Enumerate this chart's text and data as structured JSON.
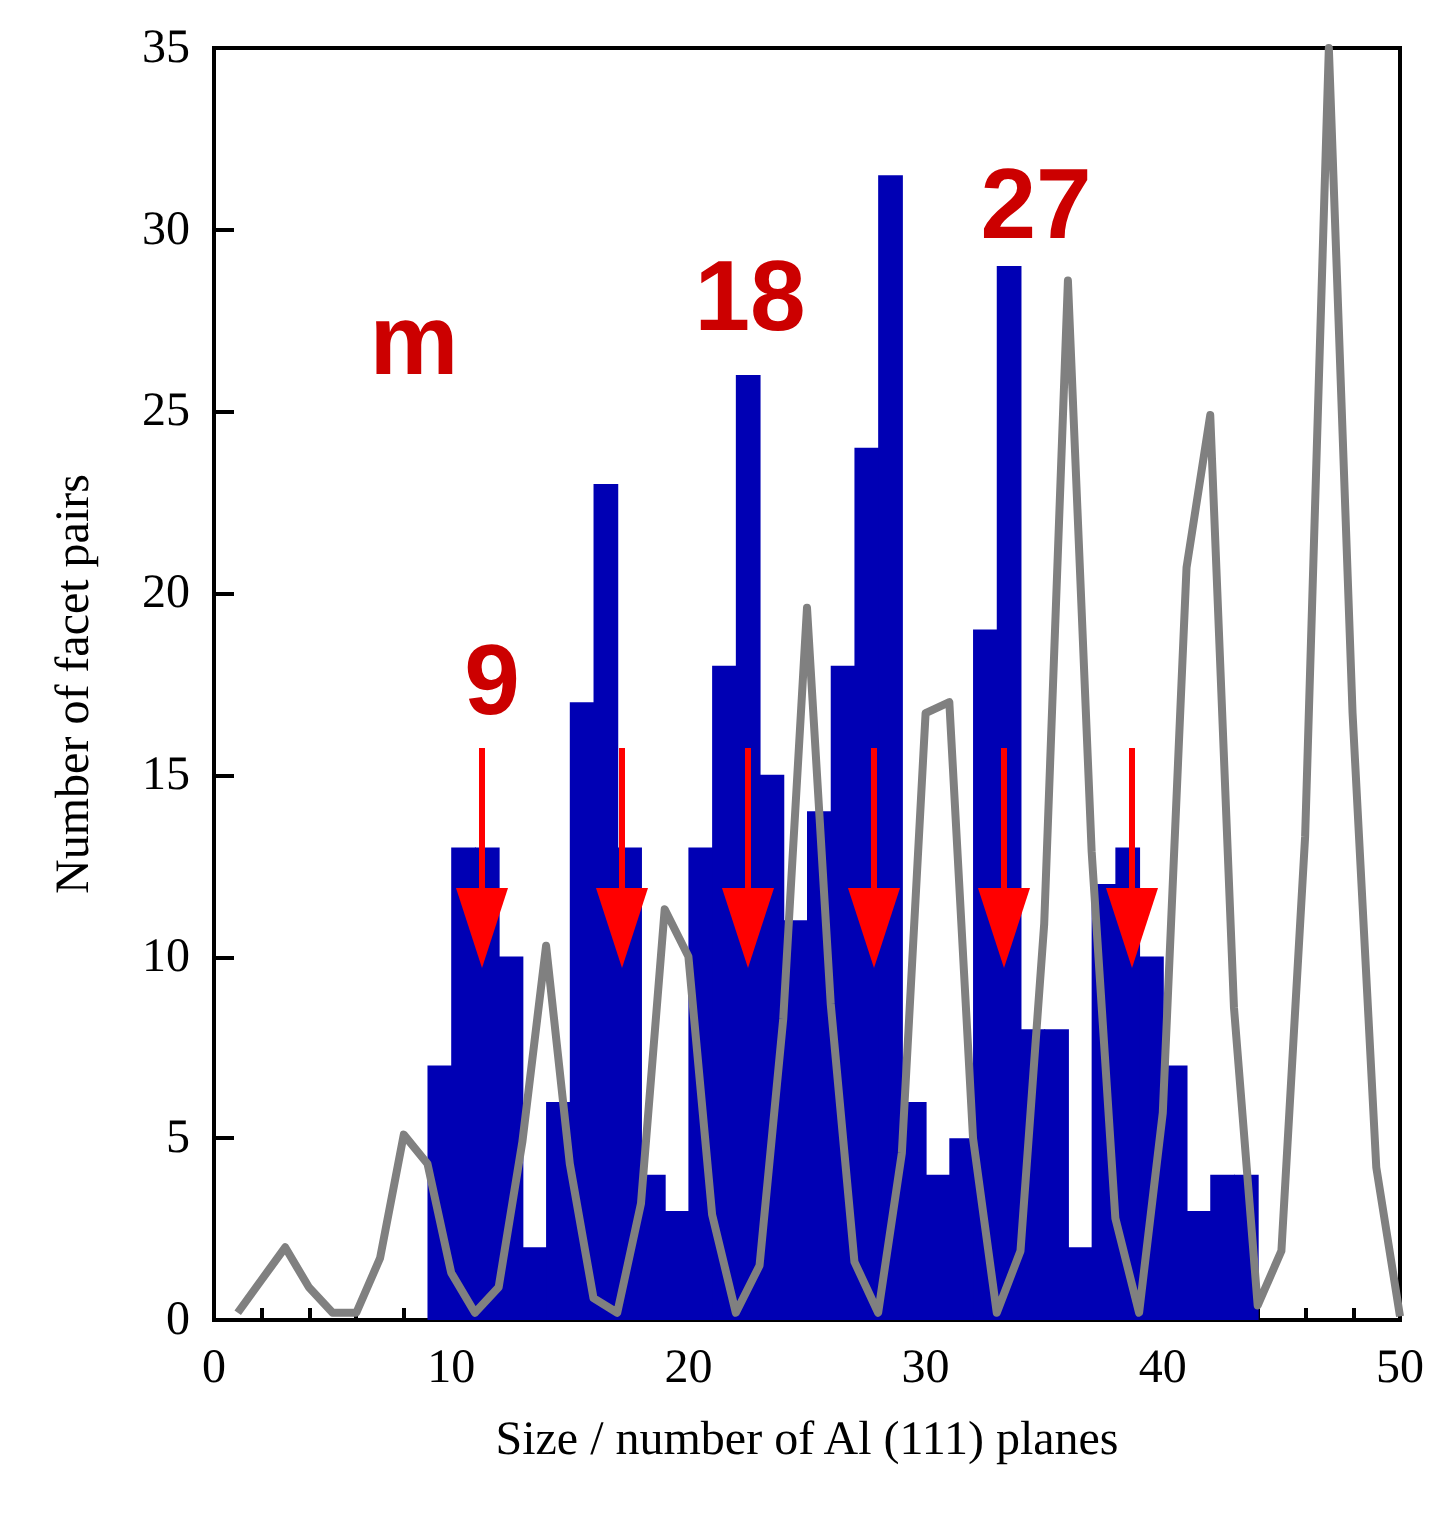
{
  "chart_data": {
    "type": "histogram",
    "xlabel": "Size / number of Al (111) planes",
    "ylabel": "Number of facet pairs",
    "xlim": [
      0,
      50
    ],
    "xticks": [
      0,
      10,
      20,
      30,
      40,
      50
    ],
    "ylim": [
      0,
      35
    ],
    "yticks": [
      0,
      5,
      10,
      15,
      20,
      25,
      30,
      35
    ],
    "grid": false,
    "series": [
      {
        "color": "#0000b4",
        "bins": [
          9,
          10,
          11,
          12,
          13,
          14,
          15,
          16,
          17,
          18,
          19,
          20,
          21,
          22,
          23,
          24,
          25,
          26,
          27,
          28,
          29,
          30,
          31,
          32,
          33,
          34,
          35,
          36,
          37,
          38,
          39,
          40,
          41,
          42,
          43,
          44
        ],
        "values": [
          7,
          13,
          13,
          10,
          2,
          6,
          17,
          23,
          13,
          4,
          3,
          13,
          18,
          26,
          15,
          11,
          14,
          18,
          24,
          31.5,
          6,
          4,
          5,
          19,
          29,
          8,
          8,
          2,
          12,
          13,
          10,
          7,
          3,
          4,
          4
        ]
      },
      {
        "type": "line",
        "color": "#808080",
        "x": [
          1,
          2,
          3,
          4,
          5,
          6,
          7,
          8,
          9,
          10,
          11,
          12,
          13,
          14,
          15,
          16,
          17,
          18,
          19,
          20,
          21,
          22,
          23,
          24,
          25,
          26,
          27,
          28,
          29,
          30,
          31,
          32,
          33,
          34,
          35,
          36,
          37,
          38,
          39,
          40,
          41,
          42,
          43,
          44,
          45,
          46,
          47,
          48,
          49,
          50
        ],
        "values": [
          0.2,
          1.1,
          2.0,
          0.9,
          0.2,
          0.2,
          1.7,
          5.1,
          4.3,
          1.3,
          0.2,
          0.9,
          4.9,
          10.3,
          4.3,
          0.6,
          0.2,
          3.2,
          11.3,
          10,
          2.9,
          0.2,
          1.5,
          8.3,
          19.6,
          8.7,
          1.6,
          0.2,
          4.6,
          16.7,
          17.0,
          5.0,
          0.2,
          1.9,
          10.9,
          28.6,
          12.9,
          2.8,
          0.2,
          5.7,
          20.7,
          24.9,
          8.6,
          0.4,
          1.9,
          13.3,
          35,
          16.7,
          4.2,
          0.1
        ]
      }
    ],
    "annotations": [
      "m",
      {
        "text": "9",
        "x": 11.3,
        "y": 9.7
      },
      "18",
      "27"
    ]
  }
}
